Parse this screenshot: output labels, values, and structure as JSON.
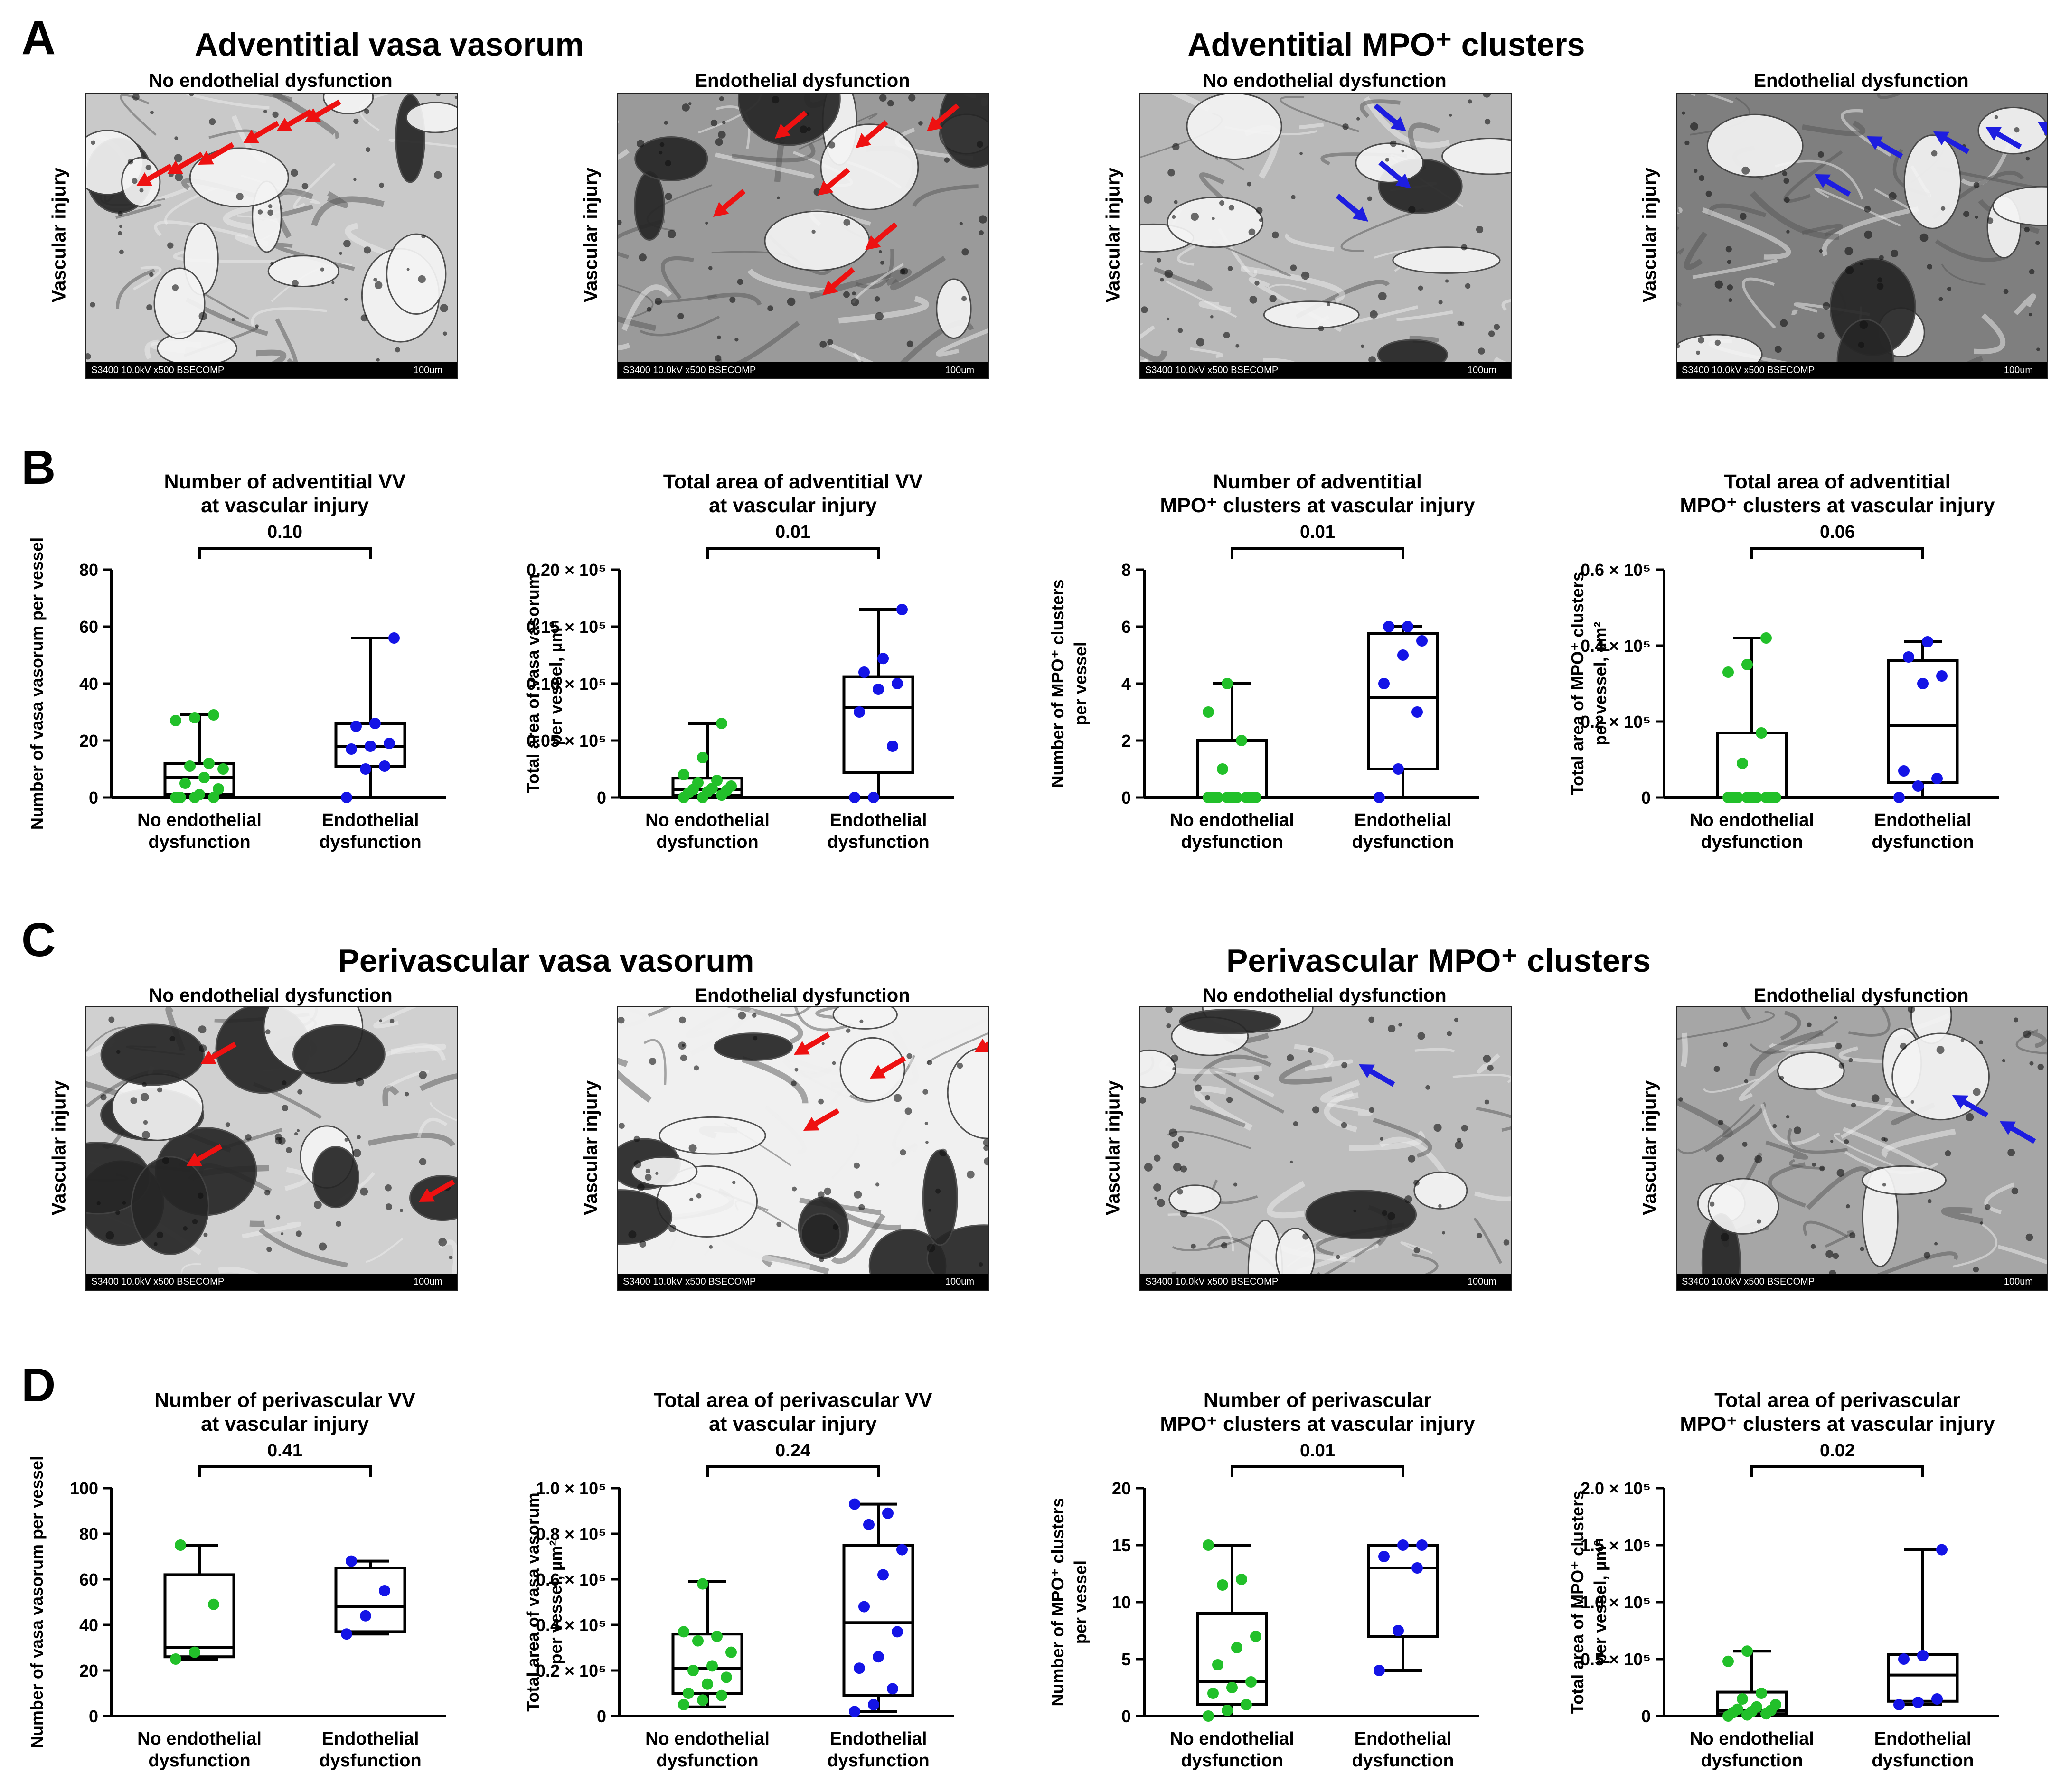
{
  "colors": {
    "group1": "#22c02a",
    "group2": "#1414e6",
    "arrow_red": "#ee1111",
    "arrow_blue": "#1d1de0"
  },
  "panels": {
    "A": {
      "letter": "A",
      "titles": [
        "Adventitial vasa vasorum",
        "Adventitial MPO⁺ clusters"
      ],
      "images": [
        {
          "title": "No endothelial dysfunction",
          "side": "Vascular injury",
          "arrow_color": "red"
        },
        {
          "title": "Endothelial dysfunction",
          "side": "Vascular injury",
          "arrow_color": "red"
        },
        {
          "title": "No endothelial dysfunction",
          "side": "Vascular injury",
          "arrow_color": "blue"
        },
        {
          "title": "Endothelial dysfunction",
          "side": "Vascular injury",
          "arrow_color": "blue"
        }
      ]
    },
    "B": {
      "letter": "B"
    },
    "C": {
      "letter": "C",
      "titles": [
        "Perivascular vasa vasorum",
        "Perivascular MPO⁺ clusters"
      ],
      "images": [
        {
          "title": "No endothelial dysfunction",
          "side": "Vascular injury",
          "arrow_color": "red"
        },
        {
          "title": "Endothelial dysfunction",
          "side": "Vascular injury",
          "arrow_color": "red"
        },
        {
          "title": "No endothelial dysfunction",
          "side": "Vascular injury",
          "arrow_color": "blue"
        },
        {
          "title": "Endothelial dysfunction",
          "side": "Vascular injury",
          "arrow_color": "blue"
        }
      ]
    },
    "D": {
      "letter": "D"
    }
  },
  "scalebar": {
    "left": "S3400 10.0kV x500 BSECOMP",
    "right": "100um"
  },
  "chart_data": [
    {
      "id": "B1",
      "type": "box",
      "title": [
        "Number of adventitial VV",
        "at vascular injury"
      ],
      "ylabel": [
        "Number of vasa vasorum per vessel"
      ],
      "ylim": [
        0,
        80
      ],
      "yticks": [
        "0",
        "20",
        "40",
        "60",
        "80"
      ],
      "categories": [
        [
          "No endothelial",
          "dysfunction"
        ],
        [
          "Endothelial",
          "dysfunction"
        ]
      ],
      "p_value": "0.10",
      "series": [
        {
          "box": [
            0,
            1,
            7,
            12,
            29
          ],
          "points": [
            0,
            0,
            0,
            0,
            1,
            3,
            5,
            7,
            10,
            11,
            12,
            27,
            28,
            29
          ]
        },
        {
          "box": [
            0,
            11,
            18,
            26,
            56
          ],
          "points": [
            0,
            10,
            11,
            17,
            18,
            19,
            25,
            26,
            56
          ]
        }
      ]
    },
    {
      "id": "B2",
      "type": "box",
      "title": [
        "Total area of adventitial VV",
        "at vascular injury"
      ],
      "ylabel": [
        "Total area of vasa vasorum",
        "per vessel, µm²"
      ],
      "ylim": [
        0,
        0.2
      ],
      "yticks": [
        "0",
        "0.05 × 10⁵",
        "0.10 × 10⁵",
        "0.15 × 10⁵",
        "0.20 × 10⁵"
      ],
      "categories": [
        [
          "No endothelial",
          "dysfunction"
        ],
        [
          "Endothelial",
          "dysfunction"
        ]
      ],
      "p_value": "0.01",
      "series": [
        {
          "box": [
            0,
            0.002,
            0.007,
            0.017,
            0.065
          ],
          "points": [
            0,
            0,
            0.002,
            0.004,
            0.005,
            0.006,
            0.007,
            0.008,
            0.01,
            0.013,
            0.015,
            0.02,
            0.035,
            0.065
          ]
        },
        {
          "box": [
            0,
            0.022,
            0.079,
            0.106,
            0.165
          ],
          "points": [
            0,
            0,
            0.045,
            0.075,
            0.095,
            0.1,
            0.11,
            0.122,
            0.165
          ]
        }
      ]
    },
    {
      "id": "B3",
      "type": "box",
      "title": [
        "Number of adventitial",
        "MPO⁺ clusters at vascular injury"
      ],
      "ylabel": [
        "Number of MPO⁺ clusters",
        "per vessel"
      ],
      "ylim": [
        0,
        8
      ],
      "yticks": [
        "0",
        "2",
        "4",
        "6",
        "8"
      ],
      "categories": [
        [
          "No endothelial",
          "dysfunction"
        ],
        [
          "Endothelial",
          "dysfunction"
        ]
      ],
      "p_value": "0.01",
      "series": [
        {
          "box": [
            0,
            0,
            0,
            2,
            4
          ],
          "points": [
            0,
            0,
            0,
            0,
            0,
            0,
            0,
            0,
            0,
            1,
            2,
            3,
            4
          ]
        },
        {
          "box": [
            0,
            1,
            3.5,
            5.75,
            6
          ],
          "points": [
            0,
            1,
            3,
            4,
            5,
            5.5,
            6,
            6
          ]
        }
      ]
    },
    {
      "id": "B4",
      "type": "box",
      "title": [
        "Total area of adventitial",
        "MPO⁺ clusters at vascular injury"
      ],
      "ylabel": [
        "Total area of MPO⁺ clusters",
        "per vessel, µm²"
      ],
      "ylim": [
        0,
        0.6
      ],
      "yticks": [
        "0",
        "0.2 × 10⁵",
        "0.4 × 10⁵",
        "0.6 × 10⁵"
      ],
      "categories": [
        [
          "No endothelial",
          "dysfunction"
        ],
        [
          "Endothelial",
          "dysfunction"
        ]
      ],
      "p_value": "0.06",
      "series": [
        {
          "box": [
            0,
            0,
            0,
            0.17,
            0.42
          ],
          "points": [
            0,
            0,
            0,
            0,
            0,
            0,
            0,
            0,
            0,
            0.09,
            0.17,
            0.33,
            0.35,
            0.42
          ]
        },
        {
          "box": [
            0,
            0.04,
            0.19,
            0.36,
            0.41
          ],
          "points": [
            0,
            0.03,
            0.05,
            0.07,
            0.3,
            0.32,
            0.37,
            0.41
          ]
        }
      ]
    },
    {
      "id": "D1",
      "type": "box",
      "title": [
        "Number of perivascular VV",
        "at vascular injury"
      ],
      "ylabel": [
        "Number of vasa vasorum per vessel"
      ],
      "ylim": [
        0,
        100
      ],
      "yticks": [
        "0",
        "20",
        "40",
        "60",
        "80",
        "100"
      ],
      "categories": [
        [
          "No endothelial",
          "dysfunction"
        ],
        [
          "Endothelial",
          "dysfunction"
        ]
      ],
      "p_value": "0.41",
      "series": [
        {
          "box": [
            25,
            26,
            30,
            62,
            75
          ],
          "points": [
            25,
            28,
            49,
            75
          ]
        },
        {
          "box": [
            36,
            37,
            48,
            65,
            68
          ],
          "points": [
            36,
            44,
            55,
            68
          ]
        }
      ]
    },
    {
      "id": "D2",
      "type": "box",
      "title": [
        "Total area of perivascular VV",
        "at vascular injury"
      ],
      "ylabel": [
        "Total area of vasa vasorum",
        "per vessel, µm²"
      ],
      "ylim": [
        0,
        1.0
      ],
      "yticks": [
        "0",
        "0.2 × 10⁵",
        "0.4 × 10⁵",
        "0.6 × 10⁵",
        "0.8 × 10⁵",
        "1.0 × 10⁵"
      ],
      "categories": [
        [
          "No endothelial",
          "dysfunction"
        ],
        [
          "Endothelial",
          "dysfunction"
        ]
      ],
      "p_value": "0.24",
      "series": [
        {
          "box": [
            0.04,
            0.1,
            0.21,
            0.36,
            0.59
          ],
          "points": [
            0.05,
            0.07,
            0.09,
            0.1,
            0.14,
            0.17,
            0.2,
            0.22,
            0.28,
            0.33,
            0.35,
            0.37,
            0.58
          ]
        },
        {
          "box": [
            0.02,
            0.09,
            0.41,
            0.75,
            0.93
          ],
          "points": [
            0.02,
            0.05,
            0.12,
            0.21,
            0.26,
            0.37,
            0.48,
            0.62,
            0.73,
            0.84,
            0.89,
            0.93
          ]
        }
      ]
    },
    {
      "id": "D3",
      "type": "box",
      "title": [
        "Number of perivascular",
        "MPO⁺ clusters at vascular injury"
      ],
      "ylabel": [
        "Number of MPO⁺ clusters",
        "per vessel"
      ],
      "ylim": [
        0,
        20
      ],
      "yticks": [
        "0",
        "5",
        "10",
        "15",
        "20"
      ],
      "categories": [
        [
          "No endothelial",
          "dysfunction"
        ],
        [
          "Endothelial",
          "dysfunction"
        ]
      ],
      "p_value": "0.01",
      "series": [
        {
          "box": [
            0,
            1,
            3,
            9,
            15
          ],
          "points": [
            0,
            0.5,
            1,
            2,
            2.5,
            3,
            4.5,
            6,
            7,
            11.5,
            12,
            15
          ]
        },
        {
          "box": [
            4,
            7,
            13,
            15,
            15
          ],
          "points": [
            4,
            7.5,
            13,
            14,
            15,
            15
          ]
        }
      ]
    },
    {
      "id": "D4",
      "type": "box",
      "title": [
        "Total area of perivascular",
        "MPO⁺ clusters at vascular injury"
      ],
      "ylabel": [
        "Total area of MPO⁺ clusters",
        "per vessel, µm²"
      ],
      "ylim": [
        0,
        2.0
      ],
      "yticks": [
        "0",
        "0.5 × 10⁵",
        "1.0 × 10⁵",
        "1.5 × 10⁵",
        "2.0 × 10⁵"
      ],
      "categories": [
        [
          "No endothelial",
          "dysfunction"
        ],
        [
          "Endothelial",
          "dysfunction"
        ]
      ],
      "p_value": "0.02",
      "series": [
        {
          "box": [
            0,
            0.02,
            0.05,
            0.21,
            0.57
          ],
          "points": [
            0,
            0.01,
            0.02,
            0.03,
            0.04,
            0.05,
            0.06,
            0.08,
            0.1,
            0.15,
            0.2,
            0.48,
            0.57
          ]
        },
        {
          "box": [
            0.1,
            0.13,
            0.36,
            0.54,
            1.46
          ],
          "points": [
            0.1,
            0.12,
            0.15,
            0.5,
            0.53,
            1.46
          ]
        }
      ]
    }
  ]
}
